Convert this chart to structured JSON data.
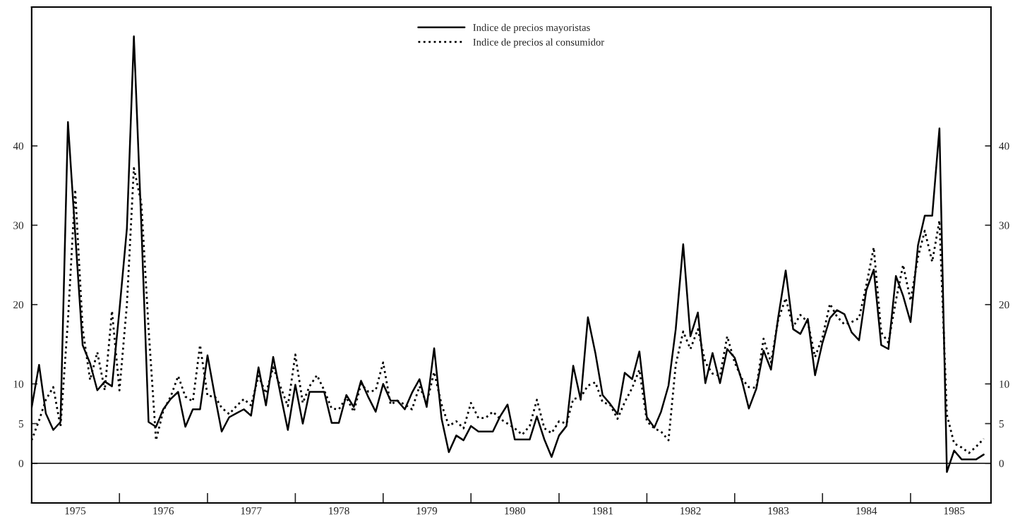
{
  "chart_data": {
    "type": "line",
    "x": [
      "1975-01",
      "1975-02",
      "1975-03",
      "1975-04",
      "1975-05",
      "1975-06",
      "1975-07",
      "1975-08",
      "1975-09",
      "1975-10",
      "1975-11",
      "1975-12",
      "1976-01",
      "1976-02",
      "1976-03",
      "1976-04",
      "1976-05",
      "1976-06",
      "1976-07",
      "1976-08",
      "1976-09",
      "1976-10",
      "1976-11",
      "1976-12",
      "1977-01",
      "1977-02",
      "1977-03",
      "1977-04",
      "1977-05",
      "1977-06",
      "1977-07",
      "1977-08",
      "1977-09",
      "1977-10",
      "1977-11",
      "1977-12",
      "1978-01",
      "1978-02",
      "1978-03",
      "1978-04",
      "1978-05",
      "1978-06",
      "1978-07",
      "1978-08",
      "1978-09",
      "1978-10",
      "1978-11",
      "1978-12",
      "1979-01",
      "1979-02",
      "1979-03",
      "1979-04",
      "1979-05",
      "1979-06",
      "1979-07",
      "1979-08",
      "1979-09",
      "1979-10",
      "1979-11",
      "1979-12",
      "1980-01",
      "1980-02",
      "1980-03",
      "1980-04",
      "1980-05",
      "1980-06",
      "1980-07",
      "1980-08",
      "1980-09",
      "1980-10",
      "1980-11",
      "1980-12",
      "1981-01",
      "1981-02",
      "1981-03",
      "1981-04",
      "1981-05",
      "1981-06",
      "1981-07",
      "1981-08",
      "1981-09",
      "1981-10",
      "1981-11",
      "1981-12",
      "1982-01",
      "1982-02",
      "1982-03",
      "1982-04",
      "1982-05",
      "1982-06",
      "1982-07",
      "1982-08",
      "1982-09",
      "1982-10",
      "1982-11",
      "1982-12",
      "1983-01",
      "1983-02",
      "1983-03",
      "1983-04",
      "1983-05",
      "1983-06",
      "1983-07",
      "1983-08",
      "1983-09",
      "1983-10",
      "1983-11",
      "1983-12",
      "1984-01",
      "1984-02",
      "1984-03",
      "1984-04",
      "1984-05",
      "1984-06",
      "1984-07",
      "1984-08",
      "1984-09",
      "1984-10",
      "1984-11",
      "1984-12",
      "1985-01",
      "1985-02",
      "1985-03",
      "1985-04",
      "1985-05",
      "1985-06",
      "1985-07",
      "1985-08",
      "1985-09",
      "1985-10",
      "1985-11"
    ],
    "series": [
      {
        "name": "Indice de precios mayoristas",
        "color": "#000000",
        "line_style": "solid",
        "values": [
          7.0,
          12.4,
          6.3,
          4.2,
          5.2,
          43.0,
          29,
          14.9,
          12.6,
          9.2,
          10.3,
          9.7,
          19.3,
          29.6,
          53.8,
          30,
          5.2,
          4.6,
          6.8,
          8.1,
          9.0,
          4.6,
          6.8,
          6.8,
          13.6,
          8.4,
          4.0,
          5.8,
          6.3,
          6.8,
          6.0,
          12.1,
          7.3,
          13.4,
          8.6,
          4.2,
          9.9,
          5.0,
          9.0,
          9.0,
          9.0,
          5.1,
          5.1,
          8.6,
          7.1,
          10.4,
          8.3,
          6.5,
          10.0,
          7.9,
          7.9,
          6.8,
          8.9,
          10.6,
          7.1,
          14.5,
          5.6,
          1.4,
          3.5,
          2.9,
          4.7,
          4.0,
          4.0,
          4.0,
          5.9,
          7.4,
          3.0,
          3.0,
          3.0,
          5.9,
          3.0,
          0.8,
          3.5,
          4.7,
          12.3,
          8.0,
          18.4,
          13.9,
          8.6,
          7.5,
          6.2,
          11.4,
          10.6,
          14.1,
          5.8,
          4.5,
          6.5,
          9.8,
          16.9,
          27.6,
          16.0,
          19.0,
          10.1,
          13.9,
          10.1,
          14.4,
          13.3,
          10.3,
          6.9,
          9.4,
          14.2,
          11.8,
          18.4,
          24.3,
          16.9,
          16.3,
          18.2,
          11.1,
          15.2,
          18.3,
          19.3,
          18.8,
          16.5,
          15.5,
          21.8,
          24.4,
          14.9,
          14.4,
          23.6,
          21.1,
          17.8,
          27.5,
          31.2,
          31.2,
          42.2,
          -1.1,
          1.6,
          0.5,
          0.5,
          0.5,
          1.1
        ]
      },
      {
        "name": "Indice de precios al consumidor",
        "color": "#000000",
        "line_style": "dotted",
        "values": [
          2.9,
          5.4,
          8.0,
          9.6,
          4.6,
          18,
          34.5,
          17,
          10.5,
          14,
          9.2,
          19.2,
          9.2,
          20,
          37.2,
          32.8,
          17.0,
          2.9,
          6.6,
          8.4,
          11.0,
          8.4,
          7.8,
          14.9,
          8.5,
          8.4,
          7.0,
          6.2,
          7.2,
          8.1,
          7.3,
          11.0,
          8.8,
          12.1,
          9.6,
          7.2,
          13.7,
          7.6,
          9.7,
          11.1,
          9.2,
          6.9,
          6.8,
          8.3,
          6.5,
          10.0,
          9.0,
          9.2,
          12.7,
          7.4,
          7.9,
          7.4,
          6.8,
          9.7,
          7.6,
          11.5,
          7.4,
          4.7,
          5.3,
          4.4,
          7.6,
          5.7,
          5.7,
          6.5,
          5.6,
          5.0,
          4.4,
          3.6,
          4.7,
          8.0,
          4.4,
          3.8,
          5.3,
          5.0,
          8.1,
          8.3,
          9.8,
          10.2,
          7.7,
          7.4,
          5.6,
          7.7,
          9.5,
          11.8,
          5.3,
          4.4,
          4.0,
          2.9,
          12.4,
          16.6,
          14.4,
          16.9,
          12.7,
          11.3,
          11.0,
          16.0,
          12.7,
          10.6,
          9.6,
          9.5,
          15.7,
          12.7,
          18.1,
          20.8,
          17.2,
          18.7,
          17.8,
          13.4,
          15.9,
          20.1,
          18.5,
          17.5,
          17.8,
          18.3,
          22.4,
          27.2,
          16.5,
          15.2,
          20.5,
          25.0,
          20.5,
          26.0,
          29.3,
          25.4,
          30.6,
          6.1,
          2.5,
          2.0,
          1.3,
          2.1,
          3.1
        ]
      }
    ],
    "xlim": [
      "1975-01",
      "1985-12"
    ],
    "xticks": [
      {
        "value": "1975-07",
        "label": "1975"
      },
      {
        "value": "1976-01",
        "label": null
      },
      {
        "value": "1976-07",
        "label": "1976"
      },
      {
        "value": "1977-01",
        "label": null
      },
      {
        "value": "1977-07",
        "label": "1977"
      },
      {
        "value": "1978-01",
        "label": null
      },
      {
        "value": "1978-07",
        "label": "1978"
      },
      {
        "value": "1979-01",
        "label": null
      },
      {
        "value": "1979-07",
        "label": "1979"
      },
      {
        "value": "1980-01",
        "label": null
      },
      {
        "value": "1980-07",
        "label": "1980"
      },
      {
        "value": "1981-01",
        "label": null
      },
      {
        "value": "1981-07",
        "label": "1981"
      },
      {
        "value": "1982-01",
        "label": null
      },
      {
        "value": "1982-07",
        "label": "1982"
      },
      {
        "value": "1983-01",
        "label": null
      },
      {
        "value": "1983-07",
        "label": "1983"
      },
      {
        "value": "1984-01",
        "label": null
      },
      {
        "value": "1984-07",
        "label": "1984"
      },
      {
        "value": "1985-01",
        "label": null
      },
      {
        "value": "1985-07",
        "label": "1985"
      }
    ],
    "ylim": [
      -5,
      57.5
    ],
    "yticks": [
      0,
      5,
      10,
      20,
      30,
      40
    ],
    "y2lim": [
      -5,
      57.5
    ],
    "y2ticks": [
      0,
      5,
      10,
      20,
      30,
      40
    ],
    "ref_lines": [
      {
        "axis": "y",
        "value": 0,
        "color": "#000000",
        "line_style": "solid"
      }
    ],
    "legend": "top",
    "grid": false
  }
}
